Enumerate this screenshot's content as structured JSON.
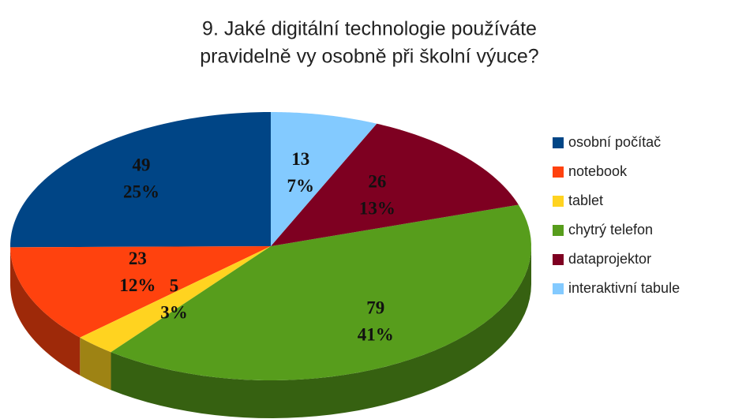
{
  "chart_data": {
    "type": "pie",
    "title": "9. Jaké digitální technologie používáte",
    "subtitle": "pravidelně vy osobně při školní výuce?",
    "categories": [
      "osobní počítač",
      "notebook",
      "tablet",
      "chytrý telefon",
      "dataprojektor",
      "interaktivní tabule"
    ],
    "values": [
      49,
      23,
      5,
      79,
      26,
      13
    ],
    "percent_labels": [
      "25%",
      "12%",
      "3%",
      "41%",
      "13%",
      "7%"
    ],
    "colors": [
      "#004586",
      "#ff420e",
      "#ffd320",
      "#579d1c",
      "#7e0021",
      "#83caff"
    ],
    "legend": "right"
  }
}
